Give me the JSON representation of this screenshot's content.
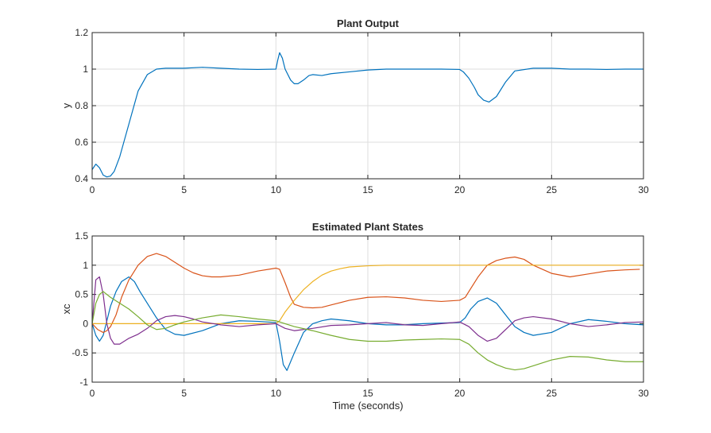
{
  "chart_data": [
    {
      "type": "line",
      "title": "Plant Output",
      "xlabel": "",
      "ylabel": "y",
      "xlim": [
        0,
        30
      ],
      "ylim": [
        0.4,
        1.2
      ],
      "xticks": [
        "0",
        "5",
        "10",
        "15",
        "20",
        "25",
        "30"
      ],
      "yticks": [
        "0.4",
        "0.6",
        "0.8",
        "1",
        "1.2"
      ],
      "grid": true,
      "series": [
        {
          "color": "#0072BD",
          "x": [
            0,
            0.2,
            0.4,
            0.6,
            0.8,
            1.0,
            1.2,
            1.5,
            2.0,
            2.5,
            3.0,
            3.5,
            4.0,
            5.0,
            6.0,
            7.0,
            8.0,
            9.0,
            10.0,
            10.1,
            10.2,
            10.35,
            10.5,
            10.8,
            11.0,
            11.2,
            11.5,
            11.8,
            12.0,
            12.5,
            13.0,
            14.0,
            15.0,
            16.0,
            17.0,
            18.0,
            19.0,
            20.0,
            20.2,
            20.5,
            20.8,
            21.0,
            21.3,
            21.6,
            22.0,
            22.5,
            23.0,
            24.0,
            25.0,
            26.0,
            27.0,
            28.0,
            29.0,
            30.0
          ],
          "y": [
            0.45,
            0.48,
            0.46,
            0.42,
            0.41,
            0.415,
            0.44,
            0.52,
            0.7,
            0.88,
            0.97,
            1.0,
            1.005,
            1.005,
            1.01,
            1.005,
            1.0,
            0.998,
            1.0,
            1.05,
            1.09,
            1.06,
            1.0,
            0.94,
            0.92,
            0.92,
            0.94,
            0.965,
            0.97,
            0.965,
            0.975,
            0.985,
            0.995,
            1.0,
            1.0,
            1.0,
            1.0,
            0.998,
            0.985,
            0.95,
            0.9,
            0.86,
            0.83,
            0.82,
            0.85,
            0.93,
            0.99,
            1.005,
            1.005,
            1.0,
            1.0,
            0.998,
            1.0,
            1.0
          ]
        }
      ]
    },
    {
      "type": "line",
      "title": "Estimated Plant States",
      "xlabel": "Time (seconds)",
      "ylabel": "xc",
      "xlim": [
        0,
        30
      ],
      "ylim": [
        -1,
        1.5
      ],
      "xticks": [
        "0",
        "5",
        "10",
        "15",
        "20",
        "25",
        "30"
      ],
      "yticks": [
        "-1",
        "-0.5",
        "0",
        "0.5",
        "1",
        "1.5"
      ],
      "grid": true,
      "series": [
        {
          "color": "#0072BD",
          "x": [
            0,
            0.2,
            0.4,
            0.6,
            0.8,
            1.0,
            1.3,
            1.6,
            2.0,
            2.3,
            2.6,
            3.0,
            3.5,
            4.0,
            4.5,
            5.0,
            6.0,
            7.0,
            8.0,
            9.0,
            10.0,
            10.2,
            10.4,
            10.6,
            11.0,
            11.5,
            12.0,
            12.5,
            13.0,
            14.0,
            15.0,
            16.0,
            17.0,
            18.0,
            19.0,
            20.0,
            20.3,
            20.6,
            21.0,
            21.5,
            22.0,
            22.5,
            23.0,
            23.5,
            24.0,
            25.0,
            26.0,
            27.0,
            28.0,
            29.0,
            30.0
          ],
          "y": [
            0.0,
            -0.2,
            -0.3,
            -0.2,
            0.05,
            0.3,
            0.55,
            0.72,
            0.8,
            0.72,
            0.55,
            0.35,
            0.1,
            -0.1,
            -0.18,
            -0.2,
            -0.12,
            0.0,
            0.05,
            0.04,
            0.02,
            -0.3,
            -0.7,
            -0.8,
            -0.5,
            -0.15,
            0.0,
            0.05,
            0.08,
            0.05,
            0.0,
            -0.02,
            -0.02,
            0.0,
            0.01,
            0.02,
            0.1,
            0.25,
            0.38,
            0.44,
            0.35,
            0.15,
            -0.05,
            -0.15,
            -0.2,
            -0.15,
            0.0,
            0.07,
            0.04,
            0.0,
            -0.02
          ]
        },
        {
          "color": "#D95319",
          "x": [
            0,
            0.3,
            0.6,
            0.8,
            1.0,
            1.3,
            1.6,
            2.0,
            2.5,
            3.0,
            3.5,
            4.0,
            4.5,
            5.0,
            5.5,
            6.0,
            6.5,
            7.0,
            8.0,
            9.0,
            10.0,
            10.2,
            10.5,
            10.8,
            11.0,
            11.5,
            12.0,
            12.5,
            13.0,
            14.0,
            15.0,
            16.0,
            17.0,
            18.0,
            19.0,
            20.0,
            20.3,
            20.6,
            21.0,
            21.5,
            22.0,
            22.5,
            23.0,
            23.5,
            24.0,
            25.0,
            26.0,
            27.0,
            28.0,
            29.0,
            29.8
          ],
          "y": [
            0.0,
            -0.1,
            -0.15,
            -0.12,
            -0.05,
            0.15,
            0.45,
            0.75,
            1.0,
            1.15,
            1.2,
            1.15,
            1.05,
            0.95,
            0.87,
            0.82,
            0.8,
            0.8,
            0.83,
            0.9,
            0.95,
            0.93,
            0.7,
            0.45,
            0.33,
            0.28,
            0.27,
            0.28,
            0.32,
            0.4,
            0.45,
            0.46,
            0.44,
            0.4,
            0.38,
            0.4,
            0.45,
            0.6,
            0.8,
            1.0,
            1.08,
            1.12,
            1.14,
            1.1,
            1.0,
            0.86,
            0.8,
            0.85,
            0.9,
            0.92,
            0.93
          ]
        },
        {
          "color": "#EDB120",
          "x": [
            0,
            5,
            10,
            10.2,
            10.5,
            11.0,
            11.5,
            12.0,
            12.5,
            13.0,
            13.5,
            14.0,
            15.0,
            16.0,
            18.0,
            20.0,
            25.0,
            30.0
          ],
          "y": [
            0.0,
            0.0,
            0.0,
            0.05,
            0.2,
            0.4,
            0.58,
            0.72,
            0.83,
            0.9,
            0.94,
            0.97,
            0.99,
            1.0,
            1.0,
            1.0,
            1.0,
            1.0
          ]
        },
        {
          "color": "#7E2F8E",
          "x": [
            0,
            0.2,
            0.4,
            0.6,
            0.8,
            1.0,
            1.2,
            1.5,
            2.0,
            2.5,
            3.0,
            3.5,
            4.0,
            4.5,
            5.0,
            5.5,
            6.0,
            7.0,
            8.0,
            9.0,
            10.0,
            10.5,
            11.0,
            12.0,
            13.0,
            14.0,
            15.0,
            16.0,
            17.0,
            18.0,
            19.0,
            20.0,
            20.5,
            21.0,
            21.5,
            22.0,
            22.5,
            23.0,
            23.5,
            24.0,
            25.0,
            26.0,
            27.0,
            28.0,
            29.0,
            30.0
          ],
          "y": [
            0.0,
            0.75,
            0.8,
            0.5,
            0.0,
            -0.25,
            -0.35,
            -0.35,
            -0.25,
            -0.18,
            -0.08,
            0.05,
            0.12,
            0.14,
            0.12,
            0.08,
            0.03,
            -0.02,
            -0.05,
            -0.02,
            0.0,
            -0.08,
            -0.12,
            -0.08,
            -0.03,
            -0.02,
            0.0,
            0.02,
            -0.02,
            -0.03,
            0.0,
            0.03,
            -0.05,
            -0.2,
            -0.3,
            -0.25,
            -0.1,
            0.05,
            0.1,
            0.12,
            0.08,
            0.0,
            -0.05,
            -0.02,
            0.02,
            0.03
          ]
        },
        {
          "color": "#77AC30",
          "x": [
            0,
            0.2,
            0.4,
            0.6,
            1.0,
            1.5,
            2.0,
            2.5,
            3.0,
            3.5,
            4.0,
            4.5,
            5.0,
            6.0,
            7.0,
            8.0,
            9.0,
            10.0,
            10.5,
            11.0,
            12.0,
            13.0,
            14.0,
            15.0,
            16.0,
            17.0,
            18.0,
            19.0,
            20.0,
            20.5,
            21.0,
            21.5,
            22.0,
            22.5,
            23.0,
            23.5,
            24.0,
            25.0,
            26.0,
            27.0,
            28.0,
            29.0,
            30.0
          ],
          "y": [
            0.0,
            0.35,
            0.5,
            0.55,
            0.45,
            0.35,
            0.25,
            0.12,
            -0.02,
            -0.1,
            -0.08,
            -0.02,
            0.03,
            0.1,
            0.15,
            0.12,
            0.08,
            0.05,
            0.0,
            -0.05,
            -0.12,
            -0.2,
            -0.27,
            -0.3,
            -0.3,
            -0.28,
            -0.27,
            -0.26,
            -0.27,
            -0.35,
            -0.5,
            -0.62,
            -0.7,
            -0.76,
            -0.79,
            -0.77,
            -0.72,
            -0.62,
            -0.56,
            -0.57,
            -0.62,
            -0.65,
            -0.65
          ]
        }
      ]
    }
  ]
}
